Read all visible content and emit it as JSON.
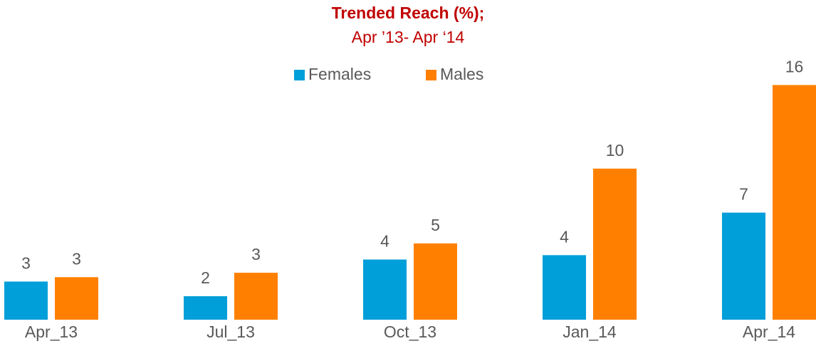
{
  "chart_data": {
    "type": "bar",
    "title": "Trended Reach (%);",
    "subtitle": "Apr ’13- Apr ‘14",
    "categories": [
      "Apr_13",
      "Jul_13",
      "Oct_13",
      "Jan_14",
      "Apr_14"
    ],
    "series": [
      {
        "name": "Females",
        "color": "#009fd9",
        "values": [
          2.6,
          1.6,
          4.1,
          4.4,
          7.3
        ],
        "value_labels": [
          "3",
          "2",
          "4",
          "4",
          "7"
        ]
      },
      {
        "name": "Males",
        "color": "#ff8000",
        "values": [
          2.9,
          3.2,
          5.2,
          10.3,
          16.0
        ],
        "value_labels": [
          "3",
          "3",
          "5",
          "10",
          "16"
        ]
      }
    ],
    "legend": "top"
  }
}
